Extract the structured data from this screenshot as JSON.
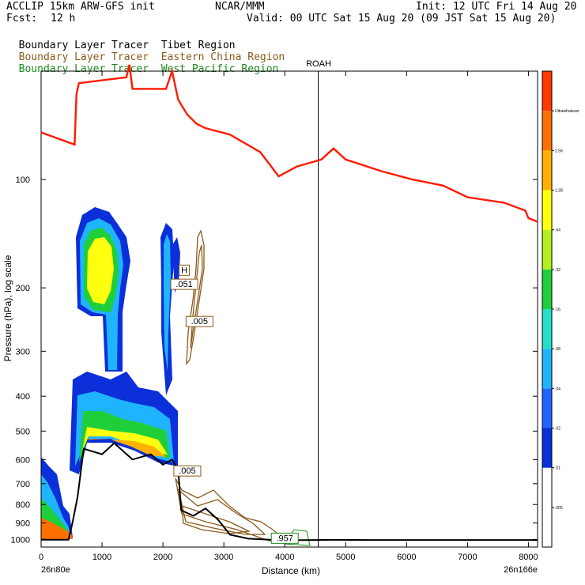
{
  "header": {
    "model": "ACCLIP 15km ARW-GFS init",
    "center": "NCAR/MMM",
    "init": "Init: 12 UTC Fri 14 Aug 20",
    "fcst_label": "Fcst:",
    "fcst_value": "12 h",
    "valid": "Valid: 00 UTC Sat 15 Aug 20 (09 JST Sat 15 Aug 20)",
    "legend": [
      {
        "prefix": "Boundary Layer Tracer",
        "region": "Tibet Region",
        "color": "#000000"
      },
      {
        "prefix": "Boundary Layer Tracer",
        "region": "Eastern China Region",
        "color": "#8b5a1a"
      },
      {
        "prefix": "Boundary Layer Tracer",
        "region": "West Pacific Region",
        "color": "#1a8a1a"
      }
    ]
  },
  "chart_data": {
    "type": "cross-section",
    "xlabel": "Distance (km)",
    "ylabel": "Pressure (hPa), log scale",
    "xlim": [
      0,
      8150
    ],
    "ylim": [
      1050,
      50
    ],
    "x_ticks": [
      0,
      1000,
      2000,
      3000,
      4000,
      5000,
      6000,
      7000,
      8000
    ],
    "y_ticks": [
      100,
      200,
      300,
      400,
      500,
      600,
      700,
      800,
      900,
      1000
    ],
    "left_endpoint": "26n80e",
    "right_endpoint": "26n166e",
    "marker_label": "ROAH",
    "marker_x": 4550,
    "colorbar_levels": [
      ".005",
      ".01",
      ".02",
      ".04",
      ".08",
      ".16",
      ".32",
      ".64",
      "1.28",
      "2.56",
      "Ultrawhatever"
    ],
    "colorbar_colors": [
      "#ffffff",
      "#ffffff",
      "#0b2fd8",
      "#1f66ff",
      "#1fb4ff",
      "#24e0c8",
      "#1fcf3a",
      "#b4f020",
      "#ffff10",
      "#ffb000",
      "#ff7000",
      "#ff3a00"
    ],
    "contour_labels": [
      {
        "text": "H",
        "x": 2350,
        "p": 180
      },
      {
        "text": ".051",
        "x": 2350,
        "p": 197
      },
      {
        "text": ".005",
        "x": 2600,
        "p": 250
      },
      {
        "text": ".005",
        "x": 2400,
        "p": 650
      },
      {
        "text": ".957",
        "x": 4000,
        "p": 1000
      }
    ],
    "tropopause": [
      [
        0,
        74
      ],
      [
        550,
        80
      ],
      [
        580,
        58
      ],
      [
        620,
        54
      ],
      [
        1400,
        52
      ],
      [
        1450,
        48
      ],
      [
        1500,
        56
      ],
      [
        2050,
        56
      ],
      [
        2150,
        50
      ],
      [
        2250,
        60
      ],
      [
        2400,
        66
      ],
      [
        2550,
        70
      ],
      [
        2700,
        72
      ],
      [
        3100,
        75
      ],
      [
        3600,
        84
      ],
      [
        3900,
        98
      ],
      [
        4200,
        92
      ],
      [
        4600,
        88
      ],
      [
        4800,
        82
      ],
      [
        5000,
        88
      ],
      [
        5600,
        95
      ],
      [
        6100,
        100
      ],
      [
        6600,
        104
      ],
      [
        7000,
        112
      ],
      [
        7600,
        116
      ],
      [
        7950,
        122
      ],
      [
        8000,
        128
      ],
      [
        8150,
        131
      ]
    ],
    "terrain": [
      [
        0,
        1002
      ],
      [
        450,
        1002
      ],
      [
        520,
        890
      ],
      [
        600,
        760
      ],
      [
        700,
        560
      ],
      [
        1000,
        580
      ],
      [
        1200,
        540
      ],
      [
        1500,
        600
      ],
      [
        1800,
        580
      ],
      [
        2000,
        620
      ],
      [
        2150,
        600
      ],
      [
        2250,
        640
      ],
      [
        2300,
        830
      ],
      [
        2500,
        860
      ],
      [
        2700,
        820
      ],
      [
        2900,
        880
      ],
      [
        3100,
        970
      ],
      [
        3400,
        995
      ],
      [
        3800,
        1003
      ],
      [
        4200,
        1005
      ],
      [
        4800,
        1003
      ],
      [
        5500,
        1004
      ],
      [
        8150,
        1004
      ]
    ]
  }
}
